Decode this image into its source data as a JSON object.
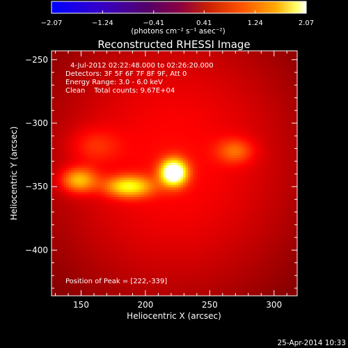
{
  "chart_data": {
    "type": "heatmap",
    "title": "Reconstructed RHESSI Image",
    "xlabel": "Heliocentric X (arcsec)",
    "ylabel": "Heliocentric Y (arcsec)",
    "xlim": [
      127,
      318
    ],
    "ylim": [
      -436,
      -243
    ],
    "xticks": [
      150,
      200,
      250,
      300
    ],
    "yticks": [
      -250,
      -300,
      -350,
      -400
    ],
    "xtick_labels": [
      "150",
      "200",
      "250",
      "300"
    ],
    "ytick_labels": [
      "−250",
      "−300",
      "−350",
      "−400"
    ],
    "colorbar": {
      "range": [
        -2.07,
        2.07
      ],
      "ticks": [
        -2.07,
        -1.24,
        -0.41,
        0.41,
        1.24,
        2.07
      ],
      "tick_labels": [
        "−2.07",
        "−1.24",
        "−0.41",
        "0.41",
        "1.24",
        "2.07"
      ],
      "label": "(photons cm⁻² s⁻¹ asec⁻²)",
      "colormap": "hot"
    },
    "annotations": {
      "time_range": "4-Jul-2012 02:22:48.000 to 02:26:20.000",
      "detectors": "Detectors: 3F 5F 6F 7F 8F 9F, Att 0",
      "energy": "Energy Range: 3.0 - 6.0 keV",
      "clean": "Clean    Total counts: 9.67E+04",
      "peak": "Position of Peak = [222,-339]"
    },
    "peak_position": [
      222,
      -339
    ],
    "sources": [
      {
        "x": 222,
        "y": -339,
        "sx": 7,
        "sy": 7,
        "amp": 2.07
      },
      {
        "x": 187,
        "y": -350,
        "sx": 13,
        "sy": 6,
        "amp": 1.15
      },
      {
        "x": 148,
        "y": -345,
        "sx": 10,
        "sy": 7,
        "amp": 1.0
      },
      {
        "x": 270,
        "y": -322,
        "sx": 10,
        "sy": 7,
        "amp": 0.55
      },
      {
        "x": 160,
        "y": -318,
        "sx": 14,
        "sy": 10,
        "amp": 0.35
      }
    ]
  },
  "footer": {
    "timestamp": "25-Apr-2014 10:33"
  },
  "colors": {
    "background": "#000000",
    "text": "#ffffff"
  }
}
